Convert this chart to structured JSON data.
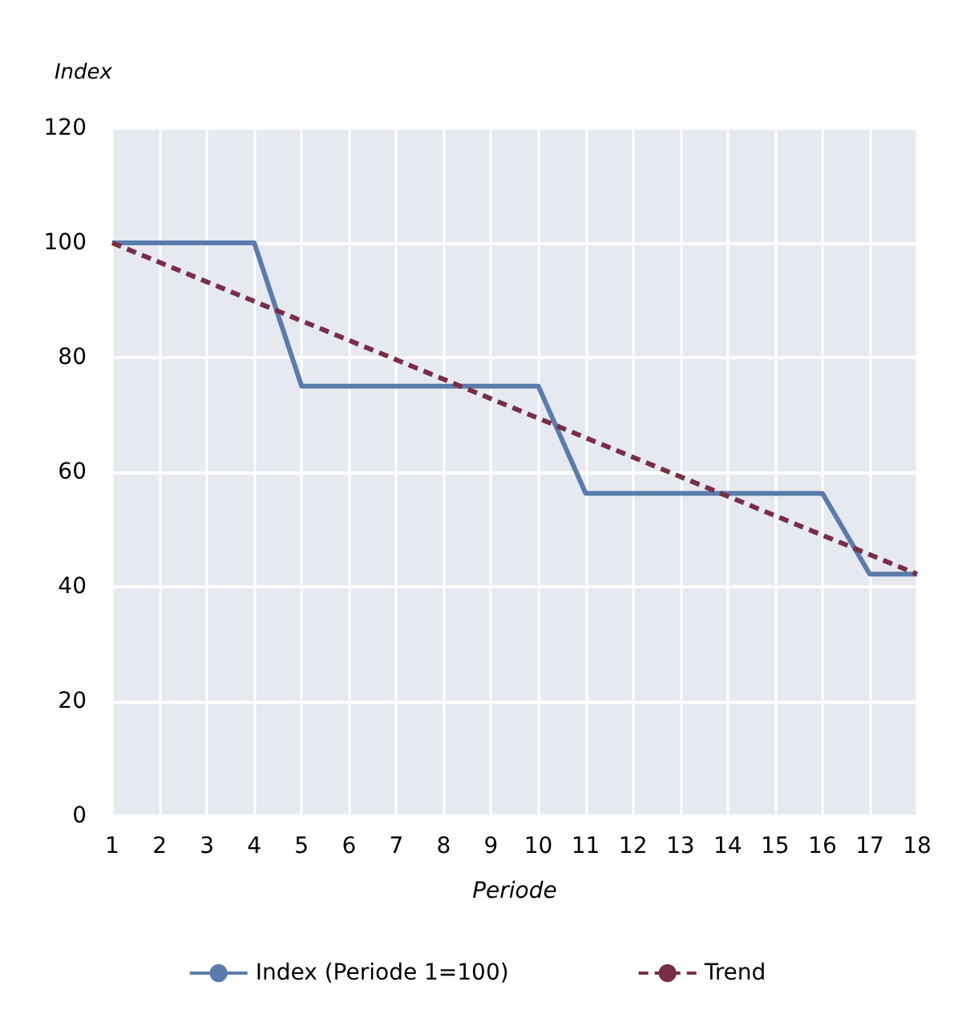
{
  "chart_data": {
    "type": "line",
    "xlabel": "Periode",
    "ylabel": "Index",
    "x": [
      1,
      2,
      3,
      4,
      5,
      6,
      7,
      8,
      9,
      10,
      11,
      12,
      13,
      14,
      15,
      16,
      17,
      18
    ],
    "series": [
      {
        "name": "Index (Periode 1=100)",
        "color": "#5b7bac",
        "values": [
          100,
          100,
          100,
          100,
          75,
          75,
          75,
          75,
          75,
          75,
          56.3,
          56.3,
          56.3,
          56.3,
          56.3,
          56.3,
          42.2,
          42.2
        ]
      },
      {
        "name": "Trend",
        "color": "#772f45",
        "line_style": "dashed",
        "x": [
          1,
          18
        ],
        "values": [
          100,
          42.2
        ]
      }
    ],
    "xlim": [
      1,
      18
    ],
    "xticks": [
      1,
      2,
      3,
      4,
      5,
      6,
      7,
      8,
      9,
      10,
      11,
      12,
      13,
      14,
      15,
      16,
      17,
      18
    ],
    "ylim": [
      0,
      120
    ],
    "yticks": [
      0,
      20,
      40,
      60,
      80,
      100,
      120
    ],
    "grid": true,
    "legend": "bottom",
    "marker": "none",
    "line_style": "solid"
  }
}
